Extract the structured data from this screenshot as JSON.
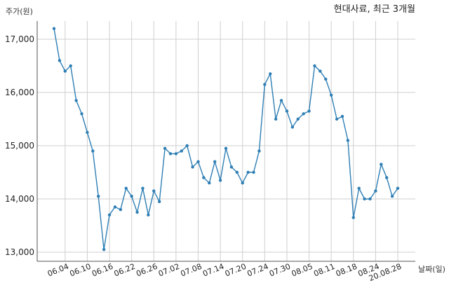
{
  "chart_data": {
    "type": "line",
    "title": "현대사료, 최근 3개월",
    "ylabel": "주가(원)",
    "xlabel": "날짜(일)",
    "ylim": [
      12800,
      17500
    ],
    "yticks": [
      13000,
      14000,
      15000,
      16000,
      17000
    ],
    "ytick_labels": [
      "13,000",
      "14,000",
      "15,000",
      "16,000",
      "17,000"
    ],
    "xtick_labels": [
      "06.04",
      "06.10",
      "06.16",
      "06.22",
      "06.26",
      "07.02",
      "07.08",
      "07.14",
      "07.20",
      "07.24",
      "07.30",
      "08.05",
      "08.11",
      "08.18",
      "08.24",
      "20.08.28"
    ],
    "xtick_index": [
      2,
      6,
      10,
      14,
      18,
      22,
      26,
      30,
      34,
      38,
      42,
      46,
      50,
      54,
      58,
      62
    ],
    "grid": true,
    "line_color": "#2f7fb5",
    "series": [
      {
        "values": [
          17200,
          16600,
          16400,
          16500,
          15850,
          15600,
          15250,
          14900,
          14050,
          13050,
          13700,
          13850,
          13800,
          14200,
          14050,
          13750,
          14200,
          13700,
          14150,
          13950,
          14950,
          14850,
          14850,
          14900,
          15000,
          14600,
          14700,
          14400,
          14300,
          14700,
          14350,
          14950,
          14600,
          14500,
          14300,
          14500,
          14500,
          14900,
          16150,
          16350,
          15500,
          15850,
          15650,
          15350,
          15500,
          15600,
          15650,
          16500,
          16400,
          16250,
          15950,
          15500,
          15550,
          15100,
          13650,
          14200,
          14000,
          14000,
          14150,
          14650,
          14400,
          14050,
          14200
        ]
      }
    ]
  }
}
